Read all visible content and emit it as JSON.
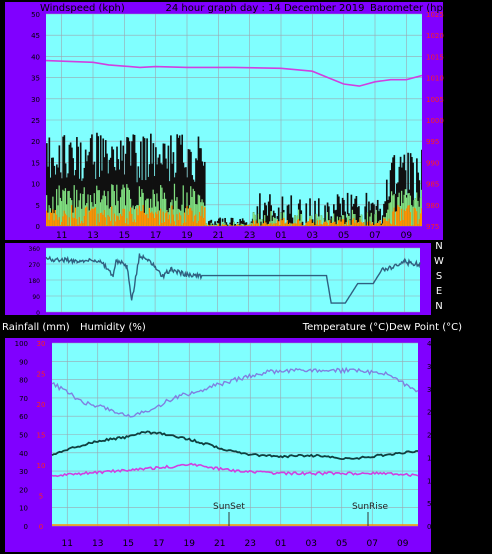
{
  "colors": {
    "page_bg": "#000000",
    "frame_purple": "#8000ff",
    "plot_bg": "#80ffff",
    "grid": "#9aa7b0",
    "black_text": "#000000",
    "white_text": "#ffffff",
    "barometer_line": "#d040e0",
    "gust_bars": "#101010",
    "wind_green": "#80e080",
    "wind_orange": "#ff9000",
    "direction_line": "#306080",
    "humidity_line": "#8080e0",
    "temperature_line": "#104040",
    "dewpoint_line": "#d040e0",
    "rain_axis_red": "#ff2020",
    "rain_line": "#ff9000"
  },
  "header": {
    "left": "Windspeed (kph)",
    "center": "24 hour graph day : 14 December 2019",
    "right": "Barometer (hpa)"
  },
  "x_tick_labels": [
    "11",
    "13",
    "15",
    "17",
    "19",
    "21",
    "23",
    "01",
    "03",
    "05",
    "07",
    "09"
  ],
  "wind_axis_ticks": [
    "0",
    "5",
    "10",
    "15",
    "20",
    "25",
    "30",
    "35",
    "40",
    "45",
    "50"
  ],
  "baro_axis_ticks": [
    "975",
    "980",
    "985",
    "990",
    "995",
    "1000",
    "1005",
    "1010",
    "1015",
    "1020",
    "1025"
  ],
  "direction_axis_ticks": [
    "0",
    "90",
    "180",
    "270",
    "360"
  ],
  "direction_letters": [
    "N",
    "W",
    "S",
    "E",
    "N"
  ],
  "lower_labels": {
    "rainfall": "Rainfall (mm)",
    "humidity": "Humidity (%)",
    "temp_dew": "Temperature (°C)Dew Point (°C)",
    "sunset": "SunSet",
    "sunrise": "SunRise"
  },
  "humidity_axis_ticks": [
    "0",
    "10",
    "20",
    "30",
    "40",
    "50",
    "60",
    "70",
    "80",
    "90",
    "100"
  ],
  "rain_axis_ticks": [
    "0",
    "5",
    "10",
    "15",
    "20",
    "25",
    "30"
  ],
  "temp_axis_ticks": [
    "0",
    "5",
    "10",
    "15",
    "20",
    "25",
    "30",
    "35",
    "40"
  ],
  "chart_data": [
    {
      "type": "bar",
      "title": "Windspeed (kph)",
      "ylim": [
        0,
        50
      ],
      "x_hours": [
        10,
        34
      ],
      "series": [
        {
          "name": "Windspeed (kph)",
          "segments": [
            {
              "from": 10,
              "to": 20.1,
              "gust_range": [
                10,
                22
              ],
              "avg_range": [
                3,
                10
              ],
              "low_range": [
                0,
                5
              ]
            },
            {
              "from": 20.1,
              "to": 23.2,
              "gust_range": [
                0,
                2
              ],
              "avg_range": [
                0,
                1
              ],
              "low_range": [
                0,
                0.5
              ]
            },
            {
              "from": 23.2,
              "to": 31.7,
              "gust_range": [
                0,
                8
              ],
              "avg_range": [
                0,
                4
              ],
              "low_range": [
                0,
                2
              ]
            },
            {
              "from": 31.7,
              "to": 34,
              "gust_range": [
                6,
                18
              ],
              "avg_range": [
                3,
                9
              ],
              "low_range": [
                0,
                5
              ]
            }
          ]
        }
      ]
    },
    {
      "type": "line",
      "title": "Barometer (hpa)",
      "ylim": [
        975,
        1025
      ],
      "x_hours": [
        10,
        34
      ],
      "series": [
        {
          "name": "Barometer (hpa)",
          "x": [
            10,
            13,
            14,
            16,
            17,
            19,
            22,
            25,
            27,
            28,
            29,
            30,
            31,
            32,
            33,
            34
          ],
          "y": [
            1014,
            1013.6,
            1013,
            1012.4,
            1012.6,
            1012.4,
            1012.4,
            1012.2,
            1011.5,
            1010,
            1008.5,
            1008,
            1009,
            1009.5,
            1009.5,
            1010.5
          ]
        }
      ]
    },
    {
      "type": "line",
      "title": "Wind direction",
      "ylim": [
        0,
        360
      ],
      "x_hours": [
        10,
        34
      ],
      "series": [
        {
          "name": "Wind direction",
          "x": [
            10,
            12,
            13.5,
            14.3,
            14.5,
            15.2,
            15.5,
            16,
            17,
            17.5,
            18,
            19,
            20,
            22,
            25,
            27,
            28,
            28.3,
            29.2,
            30,
            30.2,
            31,
            31.5,
            33,
            34
          ],
          "y": [
            300,
            285,
            290,
            200,
            290,
            260,
            60,
            320,
            260,
            200,
            240,
            210,
            205,
            205,
            205,
            205,
            205,
            50,
            50,
            160,
            160,
            160,
            230,
            280,
            270
          ]
        }
      ]
    },
    {
      "type": "line",
      "title": "Humidity (%)",
      "ylim": [
        0,
        100
      ],
      "x_hours": [
        10,
        34
      ],
      "series": [
        {
          "name": "Humidity (%)",
          "x": [
            10,
            12,
            14,
            15,
            16,
            17,
            18,
            20,
            22,
            24,
            26,
            28,
            30,
            32,
            33,
            34
          ],
          "y": [
            78,
            68,
            63,
            60,
            62,
            66,
            70,
            75,
            80,
            84,
            85,
            85,
            85,
            83,
            78,
            74
          ]
        }
      ]
    },
    {
      "type": "line",
      "title": "Temperature (°C)",
      "ylim": [
        0,
        40
      ],
      "x_hours": [
        10,
        34
      ],
      "series": [
        {
          "name": "Temperature (°C)",
          "x": [
            10,
            11,
            13,
            15,
            16,
            17,
            19,
            21,
            23,
            25,
            27,
            28,
            29,
            30,
            31,
            33,
            34
          ],
          "y": [
            15.5,
            16.8,
            18.5,
            19.5,
            20.5,
            20.3,
            19,
            17,
            15.6,
            15.2,
            15.4,
            15.2,
            14.8,
            14.8,
            15.2,
            16,
            16.4
          ]
        }
      ]
    },
    {
      "type": "line",
      "title": "Dew Point (°C)",
      "ylim": [
        0,
        40
      ],
      "x_hours": [
        10,
        34
      ],
      "series": [
        {
          "name": "Dew Point (°C)",
          "x": [
            10,
            12,
            14,
            16,
            18,
            19,
            20,
            22,
            25,
            28,
            30,
            32,
            33,
            34
          ],
          "y": [
            11,
            11.5,
            12,
            12.5,
            13,
            13.5,
            13,
            12,
            11.5,
            11.5,
            11.5,
            11.5,
            11.2,
            11
          ]
        }
      ]
    },
    {
      "type": "line",
      "title": "Rainfall (mm)",
      "ylim": [
        0,
        30
      ],
      "x_hours": [
        10,
        34
      ],
      "series": [
        {
          "name": "Rainfall (mm)",
          "x": [
            10,
            34
          ],
          "y": [
            0,
            0
          ]
        }
      ]
    }
  ]
}
